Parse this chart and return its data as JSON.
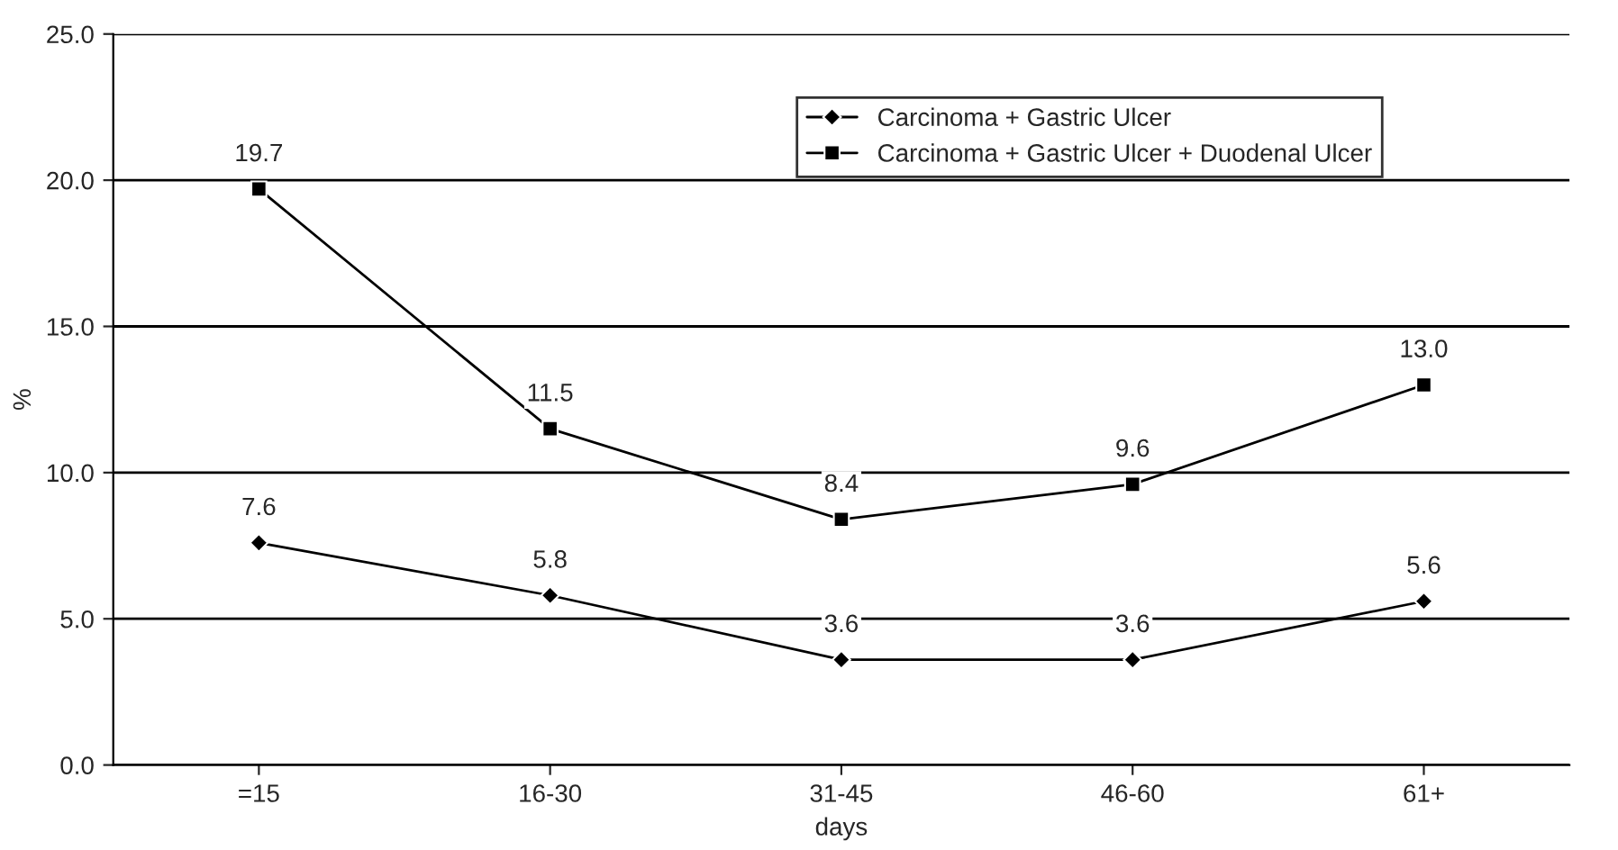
{
  "chart_data": {
    "type": "line",
    "xlabel": "days",
    "ylabel": "%",
    "categories": [
      "=15",
      "16-30",
      "31-45",
      "46-60",
      "61+"
    ],
    "series": [
      {
        "name": "Carcinoma + Gastric Ulcer",
        "color": "#000000",
        "marker": "diamond",
        "values": [
          7.6,
          5.8,
          3.6,
          3.6,
          5.6
        ],
        "value_labels": [
          "7.6",
          "5.8",
          "3.6",
          "3.6",
          "5.6"
        ]
      },
      {
        "name": "Carcinoma + Gastric Ulcer + Duodenal Ulcer",
        "color": "#000000",
        "marker": "square",
        "values": [
          19.7,
          11.5,
          8.4,
          9.6,
          13.0
        ],
        "value_labels": [
          "19.7",
          "11.5",
          "8.4",
          "9.6",
          "13.0"
        ]
      }
    ],
    "ylim": [
      0,
      25
    ],
    "yticks": [
      {
        "value": 0,
        "label": "0.0"
      },
      {
        "value": 5,
        "label": "5.0"
      },
      {
        "value": 10,
        "label": "10.0"
      },
      {
        "value": 15,
        "label": "15.0"
      },
      {
        "value": 20,
        "label": "20.0"
      },
      {
        "value": 25,
        "label": "25.0"
      }
    ],
    "grid": "y",
    "legend": "top right",
    "line_style": "solid"
  }
}
